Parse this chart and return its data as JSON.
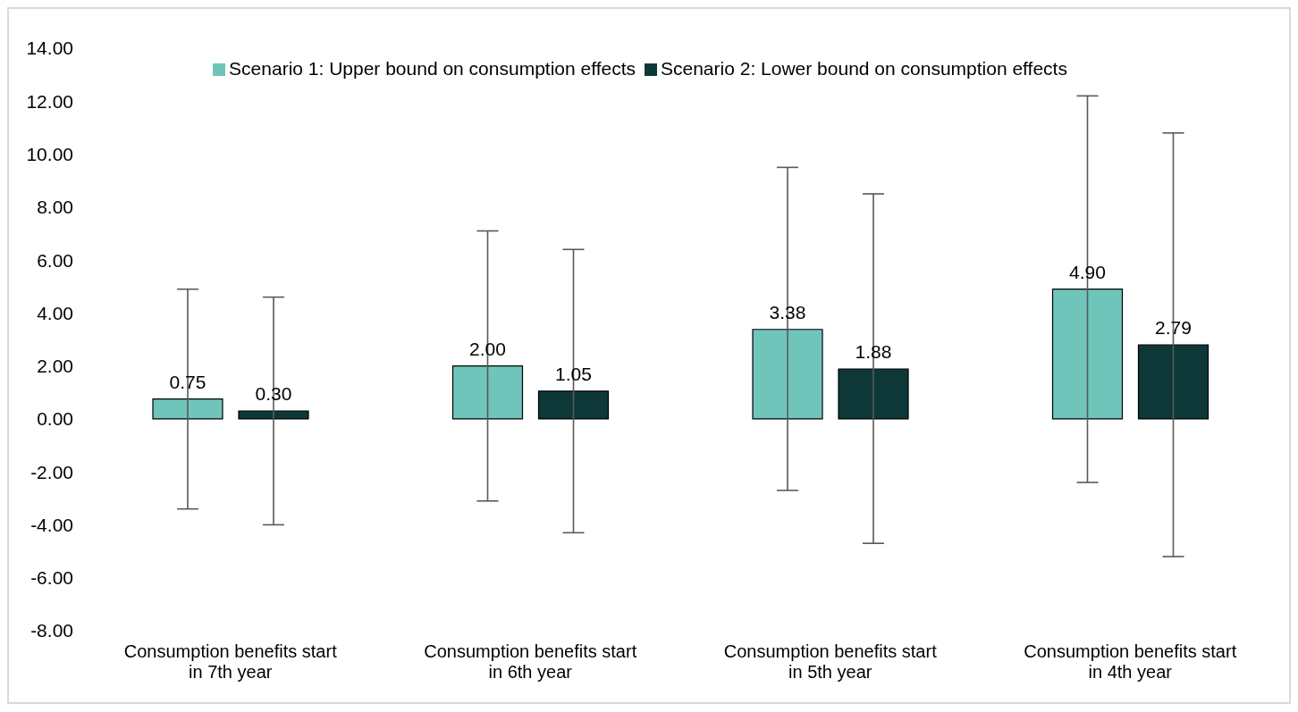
{
  "chart_data": {
    "type": "bar",
    "categories": [
      "Consumption benefits start in 7th year",
      "Consumption benefits start in 6th year",
      "Consumption benefits start in 5th year",
      "Consumption benefits start in 4th year"
    ],
    "series": [
      {
        "name": "Scenario 1: Upper bound on consumption effects",
        "color": "#70c5bb",
        "values": [
          0.75,
          2.0,
          3.38,
          4.9
        ],
        "value_labels": [
          "0.75",
          "2.00",
          "3.38",
          "4.90"
        ],
        "errors": [
          [
            -3.4,
            4.9
          ],
          [
            -3.1,
            7.1
          ],
          [
            -2.7,
            9.5
          ],
          [
            -2.4,
            12.2
          ]
        ]
      },
      {
        "name": "Scenario 2: Lower bound on consumption effects",
        "color": "#0e3838",
        "values": [
          0.3,
          1.05,
          1.88,
          2.79
        ],
        "value_labels": [
          "0.30",
          "1.05",
          "1.88",
          "2.79"
        ],
        "errors": [
          [
            -4.0,
            4.6
          ],
          [
            -4.3,
            6.4
          ],
          [
            -4.7,
            8.5
          ],
          [
            -5.2,
            10.8
          ]
        ]
      }
    ],
    "ylim": [
      -8,
      14
    ],
    "yticks": [
      {
        "value": -8,
        "label": "-8.00"
      },
      {
        "value": -6,
        "label": "-6.00"
      },
      {
        "value": -4,
        "label": "-4.00"
      },
      {
        "value": -2,
        "label": "-2.00"
      },
      {
        "value": 0,
        "label": "0.00"
      },
      {
        "value": 2,
        "label": "2.00"
      },
      {
        "value": 4,
        "label": "4.00"
      },
      {
        "value": 6,
        "label": "6.00"
      },
      {
        "value": 8,
        "label": "8.00"
      },
      {
        "value": 10,
        "label": "10.00"
      },
      {
        "value": 12,
        "label": "12.00"
      },
      {
        "value": 14,
        "label": "14.00"
      }
    ],
    "grid": false,
    "legend": "top"
  }
}
